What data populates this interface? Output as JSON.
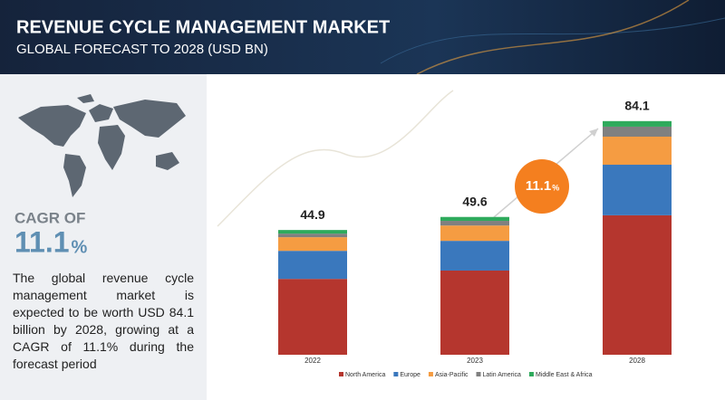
{
  "chart_data": {
    "type": "stacked-bar",
    "title": "REVENUE CYCLE MANAGEMENT MARKET",
    "subtitle": "GLOBAL FORECAST TO 2028 (USD BN)",
    "categories": [
      "2022",
      "2023",
      "2028"
    ],
    "totals": [
      44.9,
      49.6,
      84.1
    ],
    "series": [
      {
        "name": "North America",
        "color": "#b5362e",
        "values": [
          27.3,
          30.3,
          50.2
        ]
      },
      {
        "name": "Europe",
        "color": "#3a78bd",
        "values": [
          10.1,
          10.7,
          18.2
        ]
      },
      {
        "name": "Asia-Pacific",
        "color": "#f59c42",
        "values": [
          4.9,
          5.5,
          10.1
        ]
      },
      {
        "name": "Latin America",
        "color": "#808080",
        "values": [
          1.3,
          1.7,
          3.6
        ]
      },
      {
        "name": "Middle East & Africa",
        "color": "#2eaa5c",
        "values": [
          1.3,
          1.4,
          2.0
        ]
      }
    ],
    "annotation": "11.1",
    "annotation_unit": "%",
    "annotation_color": "#f47f1f"
  },
  "sidebar": {
    "cagr_label": "CAGR OF",
    "cagr_value": "11.1",
    "cagr_unit": "%",
    "description": "The global revenue cycle management market is expected to be worth USD 84.1 billion by 2028, growing at a CAGR of 11.1% during the forecast period"
  }
}
